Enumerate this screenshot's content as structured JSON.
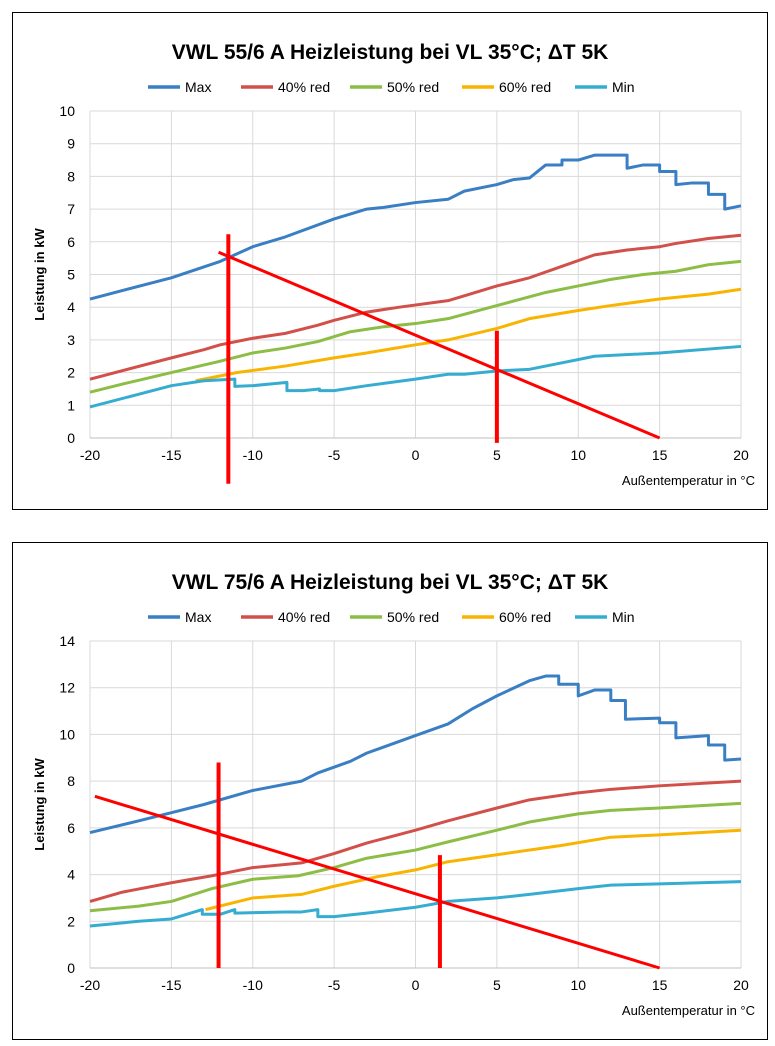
{
  "chart_data": [
    {
      "type": "line",
      "title": "VWL 55/6 A Heizleistung bei VL 35°C; ΔT 5K",
      "xlabel": "Außentemperatur in °C",
      "ylabel": "Leistung in kW",
      "xlim": [
        -20,
        20
      ],
      "ylim": [
        0,
        10
      ],
      "xticks": [
        -20,
        -15,
        -10,
        -5,
        0,
        5,
        10,
        15,
        20
      ],
      "yticks": [
        0,
        1,
        2,
        3,
        4,
        5,
        6,
        7,
        8,
        9,
        10
      ],
      "grid": true,
      "legend": "top",
      "series": [
        {
          "name": "Max",
          "color": "#3a7fc4",
          "points": [
            [
              -20,
              4.25
            ],
            [
              -15,
              4.9
            ],
            [
              -12,
              5.4
            ],
            [
              -10,
              5.85
            ],
            [
              -8,
              6.15
            ],
            [
              -5,
              6.7
            ],
            [
              -3,
              7.0
            ],
            [
              -2,
              7.05
            ],
            [
              0,
              7.2
            ],
            [
              2,
              7.3
            ],
            [
              3,
              7.55
            ],
            [
              5,
              7.75
            ],
            [
              6,
              7.9
            ],
            [
              7,
              7.95
            ],
            [
              8,
              8.35
            ],
            [
              9,
              8.35
            ],
            [
              9,
              8.5
            ],
            [
              10,
              8.5
            ],
            [
              11,
              8.65
            ],
            [
              13,
              8.65
            ],
            [
              13,
              8.25
            ],
            [
              14,
              8.35
            ],
            [
              15,
              8.35
            ],
            [
              15,
              8.15
            ],
            [
              16,
              8.15
            ],
            [
              16,
              7.75
            ],
            [
              17,
              7.8
            ],
            [
              18,
              7.8
            ],
            [
              18,
              7.45
            ],
            [
              19,
              7.45
            ],
            [
              19,
              7.0
            ],
            [
              20,
              7.1
            ]
          ]
        },
        {
          "name": "40% red",
          "color": "#d2504a",
          "points": [
            [
              -20,
              1.8
            ],
            [
              -15,
              2.45
            ],
            [
              -13,
              2.7
            ],
            [
              -12,
              2.85
            ],
            [
              -10,
              3.05
            ],
            [
              -8,
              3.2
            ],
            [
              -6,
              3.45
            ],
            [
              -5,
              3.6
            ],
            [
              -3,
              3.85
            ],
            [
              -1,
              4.0
            ],
            [
              2,
              4.2
            ],
            [
              3,
              4.35
            ],
            [
              5,
              4.65
            ],
            [
              7,
              4.9
            ],
            [
              9,
              5.25
            ],
            [
              11,
              5.6
            ],
            [
              13,
              5.75
            ],
            [
              15,
              5.85
            ],
            [
              16,
              5.95
            ],
            [
              18,
              6.1
            ],
            [
              20,
              6.2
            ]
          ]
        },
        {
          "name": "50% red",
          "color": "#8cbd45",
          "points": [
            [
              -20,
              1.4
            ],
            [
              -18,
              1.65
            ],
            [
              -15,
              2.0
            ],
            [
              -12,
              2.35
            ],
            [
              -10,
              2.6
            ],
            [
              -8,
              2.75
            ],
            [
              -6,
              2.95
            ],
            [
              -4,
              3.25
            ],
            [
              -2,
              3.4
            ],
            [
              0,
              3.5
            ],
            [
              2,
              3.65
            ],
            [
              5,
              4.05
            ],
            [
              8,
              4.45
            ],
            [
              10,
              4.65
            ],
            [
              12,
              4.85
            ],
            [
              14,
              5.0
            ],
            [
              16,
              5.1
            ],
            [
              18,
              5.3
            ],
            [
              20,
              5.4
            ]
          ]
        },
        {
          "name": "60% red",
          "color": "#f8b400",
          "points": [
            [
              -13.5,
              1.75
            ],
            [
              -11,
              2.0
            ],
            [
              -8,
              2.2
            ],
            [
              -5,
              2.45
            ],
            [
              -3,
              2.6
            ],
            [
              0,
              2.85
            ],
            [
              2,
              3.0
            ],
            [
              5,
              3.35
            ],
            [
              7,
              3.65
            ],
            [
              10,
              3.9
            ],
            [
              12,
              4.05
            ],
            [
              15,
              4.25
            ],
            [
              18,
              4.4
            ],
            [
              20,
              4.55
            ]
          ]
        },
        {
          "name": "Min",
          "color": "#36add0",
          "points": [
            [
              -20,
              0.95
            ],
            [
              -15,
              1.6
            ],
            [
              -13,
              1.75
            ],
            [
              -11.1,
              1.8
            ],
            [
              -11.1,
              1.58
            ],
            [
              -10,
              1.6
            ],
            [
              -7.9,
              1.7
            ],
            [
              -7.9,
              1.45
            ],
            [
              -6.9,
              1.45
            ],
            [
              -5.9,
              1.5
            ],
            [
              -5.9,
              1.45
            ],
            [
              -5,
              1.45
            ],
            [
              -3,
              1.6
            ],
            [
              0,
              1.8
            ],
            [
              2,
              1.95
            ],
            [
              3,
              1.95
            ],
            [
              5,
              2.05
            ],
            [
              7,
              2.1
            ],
            [
              9,
              2.3
            ],
            [
              11,
              2.5
            ],
            [
              15,
              2.6
            ],
            [
              20,
              2.8
            ]
          ]
        }
      ],
      "annotations": [
        {
          "color": "#ff0000",
          "points": [
            [
              -12.1,
              5.68
            ],
            [
              15,
              0
            ]
          ]
        },
        {
          "color": "#ff0000",
          "points": [
            [
              -11.5,
              6.23
            ],
            [
              -11.5,
              -1.4
            ]
          ]
        },
        {
          "color": "#ff0000",
          "points": [
            [
              5,
              3.28
            ],
            [
              5,
              -0.15
            ]
          ]
        }
      ]
    },
    {
      "type": "line",
      "title": "VWL 75/6 A Heizleistung bei VL 35°C; ΔT 5K",
      "xlabel": "Außentemperatur in °C",
      "ylabel": "Leistung in kW",
      "xlim": [
        -20,
        20
      ],
      "ylim": [
        0,
        14
      ],
      "xticks": [
        -20,
        -15,
        -10,
        -5,
        0,
        5,
        10,
        15,
        20
      ],
      "yticks": [
        0,
        2,
        4,
        6,
        8,
        10,
        12,
        14
      ],
      "grid": true,
      "legend": "top",
      "series": [
        {
          "name": "Max",
          "color": "#3a7fc4",
          "points": [
            [
              -20,
              5.8
            ],
            [
              -17,
              6.3
            ],
            [
              -15,
              6.65
            ],
            [
              -13,
              7.0
            ],
            [
              -10,
              7.6
            ],
            [
              -7,
              8.0
            ],
            [
              -6,
              8.35
            ],
            [
              -4,
              8.85
            ],
            [
              -3,
              9.2
            ],
            [
              0,
              9.95
            ],
            [
              2,
              10.45
            ],
            [
              3.5,
              11.1
            ],
            [
              5,
              11.65
            ],
            [
              7,
              12.3
            ],
            [
              8,
              12.5
            ],
            [
              8.8,
              12.5
            ],
            [
              8.8,
              12.15
            ],
            [
              10,
              12.15
            ],
            [
              10,
              11.65
            ],
            [
              11,
              11.9
            ],
            [
              12,
              11.9
            ],
            [
              12,
              11.45
            ],
            [
              12.9,
              11.45
            ],
            [
              12.9,
              10.65
            ],
            [
              15,
              10.7
            ],
            [
              15,
              10.5
            ],
            [
              16,
              10.5
            ],
            [
              16,
              9.85
            ],
            [
              18,
              9.95
            ],
            [
              18,
              9.55
            ],
            [
              19,
              9.55
            ],
            [
              19,
              8.9
            ],
            [
              20,
              8.95
            ]
          ]
        },
        {
          "name": "40% red",
          "color": "#d2504a",
          "points": [
            [
              -20,
              2.85
            ],
            [
              -18,
              3.25
            ],
            [
              -15,
              3.65
            ],
            [
              -12.5,
              3.95
            ],
            [
              -10,
              4.3
            ],
            [
              -7,
              4.5
            ],
            [
              -5,
              4.9
            ],
            [
              -3,
              5.35
            ],
            [
              0,
              5.9
            ],
            [
              2,
              6.3
            ],
            [
              5,
              6.85
            ],
            [
              7,
              7.2
            ],
            [
              10,
              7.5
            ],
            [
              12,
              7.65
            ],
            [
              15,
              7.8
            ],
            [
              20,
              8.0
            ]
          ]
        },
        {
          "name": "50% red",
          "color": "#8cbd45",
          "points": [
            [
              -20,
              2.45
            ],
            [
              -17,
              2.65
            ],
            [
              -15,
              2.85
            ],
            [
              -12.5,
              3.4
            ],
            [
              -10,
              3.8
            ],
            [
              -7.2,
              3.95
            ],
            [
              -5,
              4.3
            ],
            [
              -3,
              4.7
            ],
            [
              0,
              5.05
            ],
            [
              2,
              5.4
            ],
            [
              5,
              5.9
            ],
            [
              7,
              6.25
            ],
            [
              10,
              6.6
            ],
            [
              12,
              6.75
            ],
            [
              15,
              6.85
            ],
            [
              20,
              7.05
            ]
          ]
        },
        {
          "name": "60% red",
          "color": "#f8b400",
          "points": [
            [
              -12.9,
              2.5
            ],
            [
              -10,
              3.0
            ],
            [
              -7,
              3.15
            ],
            [
              -5,
              3.5
            ],
            [
              -2.4,
              3.9
            ],
            [
              0,
              4.2
            ],
            [
              2,
              4.55
            ],
            [
              5,
              4.85
            ],
            [
              9,
              5.25
            ],
            [
              12,
              5.6
            ],
            [
              15,
              5.7
            ],
            [
              20,
              5.9
            ]
          ]
        },
        {
          "name": "Min",
          "color": "#36add0",
          "points": [
            [
              -20,
              1.8
            ],
            [
              -17,
              2.0
            ],
            [
              -15,
              2.1
            ],
            [
              -13.1,
              2.5
            ],
            [
              -13.1,
              2.3
            ],
            [
              -12,
              2.3
            ],
            [
              -11.1,
              2.5
            ],
            [
              -11.1,
              2.35
            ],
            [
              -8,
              2.4
            ],
            [
              -7,
              2.4
            ],
            [
              -6,
              2.5
            ],
            [
              -6,
              2.2
            ],
            [
              -5,
              2.2
            ],
            [
              -3,
              2.35
            ],
            [
              0,
              2.6
            ],
            [
              2,
              2.85
            ],
            [
              5,
              3.0
            ],
            [
              7,
              3.15
            ],
            [
              10,
              3.4
            ],
            [
              12,
              3.55
            ],
            [
              15,
              3.6
            ],
            [
              20,
              3.7
            ]
          ]
        }
      ],
      "annotations": [
        {
          "color": "#ff0000",
          "points": [
            [
              -19.7,
              7.35
            ],
            [
              15,
              0
            ]
          ]
        },
        {
          "color": "#ff0000",
          "points": [
            [
              -12.1,
              8.8
            ],
            [
              -12.1,
              0
            ]
          ]
        },
        {
          "color": "#ff0000",
          "points": [
            [
              1.5,
              4.83
            ],
            [
              1.5,
              0
            ]
          ]
        }
      ]
    }
  ]
}
